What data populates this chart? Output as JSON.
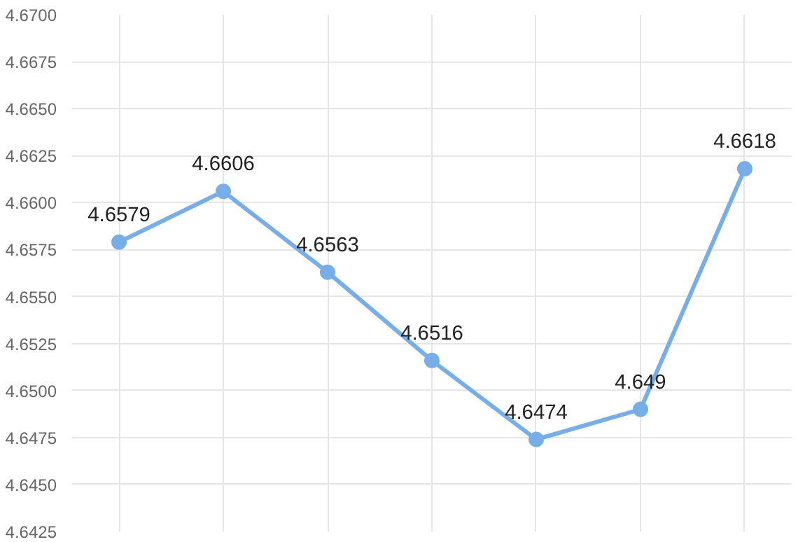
{
  "chart_data": {
    "type": "line",
    "categories": [
      null,
      null,
      null,
      null,
      null,
      null,
      null
    ],
    "series": [
      {
        "color": "#78aee8",
        "values": [
          4.6579,
          4.6606,
          4.6563,
          4.6516,
          4.6474,
          4.649,
          4.6618
        ]
      }
    ],
    "ylim": [
      4.6425,
      4.67
    ],
    "yticks": [
      {
        "value": 4.6425,
        "label": "4.6425"
      },
      {
        "value": 4.645,
        "label": "4.6450"
      },
      {
        "value": 4.6475,
        "label": "4.6475"
      },
      {
        "value": 4.65,
        "label": "4.6500"
      },
      {
        "value": 4.6525,
        "label": "4.6525"
      },
      {
        "value": 4.655,
        "label": "4.6550"
      },
      {
        "value": 4.6575,
        "label": "4.6575"
      },
      {
        "value": 4.66,
        "label": "4.6600"
      },
      {
        "value": 4.6625,
        "label": "4.6625"
      },
      {
        "value": 4.665,
        "label": "4.6650"
      },
      {
        "value": 4.6675,
        "label": "4.6675"
      },
      {
        "value": 4.67,
        "label": "4.6700"
      }
    ],
    "tick_labels": "y",
    "grid": true,
    "marker": "circle",
    "line_style": "solid",
    "data_labels": true
  }
}
